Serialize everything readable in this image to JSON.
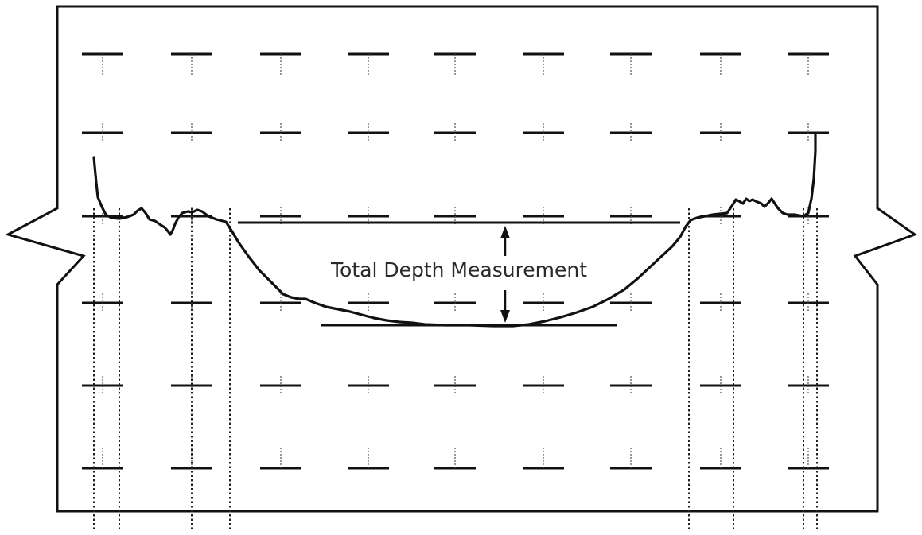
{
  "diagram": {
    "annotation_label": "Total Depth Measurement",
    "colors": {
      "line": "#111111",
      "text": "#2a2a2a",
      "background": "#ffffff"
    }
  }
}
